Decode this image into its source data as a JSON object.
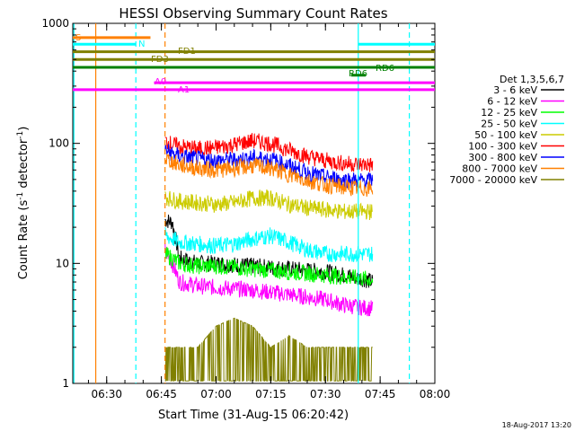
{
  "chart_data": {
    "type": "line",
    "title": "HESSI Observing Summary Count Rates",
    "xlabel": "Start Time (31-Aug-15 06:20:42)",
    "ylabel": "Count Rate (s",
    "ylabel_sup": "-1",
    "ylabel_mid": " detector",
    "ylabel_sup2": "-1",
    "ylabel_end": ")",
    "date_stamp": "18-Aug-2017 13:20",
    "y_scale": "log",
    "ylim": [
      1,
      1000
    ],
    "xlim": [
      "06:20:42",
      "08:00:00"
    ],
    "x_ticks": [
      "06:30",
      "06:45",
      "07:00",
      "07:15",
      "07:30",
      "07:45",
      "08:00"
    ],
    "y_ticks": [
      "1",
      "10",
      "100",
      "1000"
    ],
    "legend": {
      "title": "Det 1,3,5,6,7",
      "placement": "right",
      "entries": [
        {
          "label": "3 - 6 keV",
          "color": "#000000"
        },
        {
          "label": "6 - 12 keV",
          "color": "#ff00ff"
        },
        {
          "label": "12 - 25 keV",
          "color": "#00ff00"
        },
        {
          "label": "25 - 50 keV",
          "color": "#00ffff"
        },
        {
          "label": "50 - 100 keV",
          "color": "#cccc00"
        },
        {
          "label": "100 - 300 keV",
          "color": "#ff0000"
        },
        {
          "label": "300 - 800 keV",
          "color": "#0000ff"
        },
        {
          "label": "800 - 7000 keV",
          "color": "#ff8000"
        },
        {
          "label": "7000 - 20000 keV",
          "color": "#808000"
        }
      ]
    },
    "series": [
      {
        "name": "3 - 6 keV",
        "color": "#000000",
        "x": [
          "06:46",
          "06:48",
          "06:50",
          "06:55",
          "07:00",
          "07:10",
          "07:20",
          "07:30",
          "07:35",
          "07:40",
          "07:43"
        ],
        "values": [
          23,
          22,
          11,
          10,
          10,
          9.5,
          9,
          8.5,
          8,
          7.5,
          7
        ]
      },
      {
        "name": "6 - 12 keV",
        "color": "#ff00ff",
        "x": [
          "06:46",
          "06:48",
          "06:50",
          "06:55",
          "07:00",
          "07:10",
          "07:20",
          "07:30",
          "07:35",
          "07:40",
          "07:43"
        ],
        "values": [
          13,
          10,
          7,
          6.5,
          6.3,
          6,
          5.5,
          5,
          4.5,
          4.3,
          4.2
        ]
      },
      {
        "name": "12 - 25 keV",
        "color": "#00ff00",
        "x": [
          "06:46",
          "06:48",
          "06:50",
          "06:55",
          "07:00",
          "07:10",
          "07:20",
          "07:30",
          "07:35",
          "07:40",
          "07:43"
        ],
        "values": [
          12,
          11,
          10,
          9.5,
          9.5,
          9,
          8.5,
          8,
          7.7,
          7.5,
          7.3
        ]
      },
      {
        "name": "25 - 50 keV",
        "color": "#00ffff",
        "x": [
          "06:46",
          "06:48",
          "06:50",
          "06:55",
          "07:00",
          "07:05",
          "07:10",
          "07:15",
          "07:20",
          "07:25",
          "07:30",
          "07:35",
          "07:40",
          "07:43"
        ],
        "values": [
          17,
          16,
          15,
          14.5,
          14,
          14.5,
          16,
          17,
          15,
          13,
          12,
          12,
          12,
          12
        ]
      },
      {
        "name": "50 - 100 keV",
        "color": "#cccc00",
        "x": [
          "06:46",
          "06:48",
          "06:50",
          "06:55",
          "07:00",
          "07:05",
          "07:10",
          "07:15",
          "07:20",
          "07:25",
          "07:30",
          "07:35",
          "07:40",
          "07:43"
        ],
        "values": [
          36,
          34,
          33,
          32,
          31,
          32,
          35,
          35,
          31,
          29,
          28,
          27,
          27,
          27
        ]
      },
      {
        "name": "100 - 300 keV",
        "color": "#ff0000",
        "x": [
          "06:46",
          "06:48",
          "06:50",
          "06:55",
          "07:00",
          "07:05",
          "07:10",
          "07:15",
          "07:20",
          "07:25",
          "07:30",
          "07:35",
          "07:40",
          "07:43"
        ],
        "values": [
          105,
          98,
          94,
          90,
          92,
          98,
          105,
          100,
          88,
          78,
          72,
          68,
          67,
          66
        ]
      },
      {
        "name": "300 - 800 keV",
        "color": "#0000ff",
        "x": [
          "06:46",
          "06:48",
          "06:50",
          "06:55",
          "07:00",
          "07:05",
          "07:10",
          "07:15",
          "07:20",
          "07:25",
          "07:30",
          "07:35",
          "07:40",
          "07:43"
        ],
        "values": [
          88,
          82,
          78,
          74,
          72,
          73,
          76,
          74,
          65,
          57,
          52,
          50,
          49,
          49
        ]
      },
      {
        "name": "800 - 7000 keV",
        "color": "#ff8000",
        "x": [
          "06:46",
          "06:48",
          "06:50",
          "06:55",
          "07:00",
          "07:05",
          "07:10",
          "07:15",
          "07:20",
          "07:25",
          "07:30",
          "07:35",
          "07:40",
          "07:43"
        ],
        "values": [
          75,
          70,
          66,
          62,
          60,
          62,
          65,
          62,
          55,
          49,
          45,
          43,
          42,
          42
        ]
      },
      {
        "name": "7000 - 20000 keV",
        "color": "#808000",
        "x": [
          "06:46",
          "06:50",
          "06:55",
          "07:00",
          "07:05",
          "07:10",
          "07:15",
          "07:20",
          "07:25",
          "07:30",
          "07:35",
          "07:40",
          "07:43"
        ],
        "values": [
          2,
          2,
          2,
          3,
          3.5,
          3,
          2,
          2.5,
          2,
          2,
          2,
          2,
          2
        ]
      }
    ],
    "flag_bars": [
      {
        "label": "S",
        "color": "#ff8000",
        "start": "06:20:42",
        "end": "06:42",
        "level": 760
      },
      {
        "label": "N",
        "color": "#00ffff",
        "start": "06:20:42",
        "end": "06:38",
        "level": 670
      },
      {
        "label": "N",
        "color": "#00ffff",
        "start": "07:39",
        "end": "08:00:00",
        "level": 670
      },
      {
        "label": "FD1",
        "color": "#808000",
        "start": "06:20:42",
        "end": "08:00:00",
        "level": 580
      },
      {
        "label": "FD3",
        "color": "#808000",
        "start": "06:20:42",
        "end": "08:00:00",
        "level": 500
      },
      {
        "label": "RD6",
        "color": "#008000",
        "start": "06:20:42",
        "end": "08:00:00",
        "level": 430
      },
      {
        "label": "RD6",
        "color": "#008000",
        "start": "07:37",
        "end": "07:41",
        "level": 370
      },
      {
        "label": "A0",
        "color": "#ff00ff",
        "start": "06:43",
        "end": "08:00:00",
        "level": 320
      },
      {
        "label": "A1",
        "color": "#ff00ff",
        "start": "06:20:42",
        "end": "08:00:00",
        "level": 280
      }
    ],
    "vertical_markers": [
      {
        "time": "06:21",
        "color": "#00ffff",
        "style": "solid"
      },
      {
        "time": "06:27",
        "color": "#ff8000",
        "style": "solid"
      },
      {
        "time": "06:46",
        "color": "#ff8000",
        "style": "dashed"
      },
      {
        "time": "06:38",
        "color": "#00ffff",
        "style": "dashed"
      },
      {
        "time": "07:39",
        "color": "#00ffff",
        "style": "solid"
      },
      {
        "time": "07:53",
        "color": "#00ffff",
        "style": "dashed"
      }
    ]
  }
}
